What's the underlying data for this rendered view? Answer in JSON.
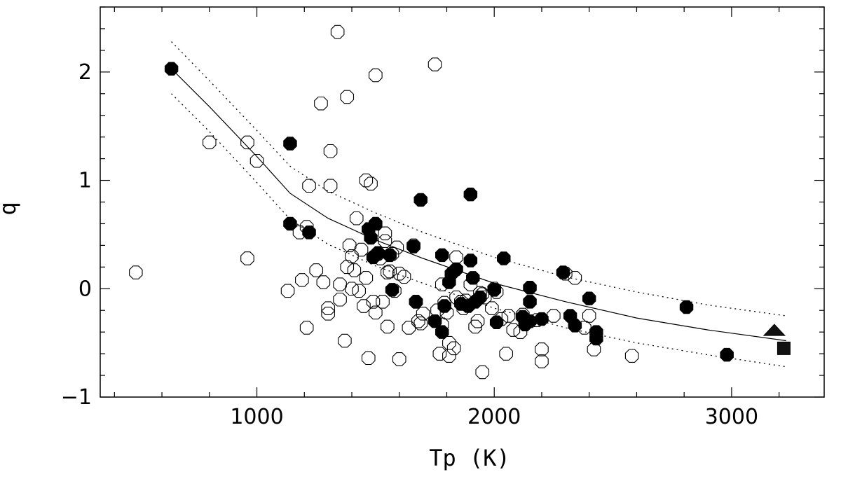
{
  "chart_data": {
    "type": "scatter",
    "title": "",
    "xlabel": "Tp (K)",
    "ylabel": "q",
    "xlim": [
      340,
      3390
    ],
    "ylim": [
      -1.0,
      2.6
    ],
    "x_ticks": [
      1000,
      2000,
      3000
    ],
    "x_tick_labels": [
      "1000",
      "2000",
      "3000"
    ],
    "y_ticks": [
      -1,
      0,
      1,
      2
    ],
    "y_tick_labels": [
      "−1",
      "0",
      "1",
      "2"
    ],
    "grid": false,
    "series": [
      {
        "marker": "open-octagon",
        "points": [
          [
            490,
            0.15
          ],
          [
            800,
            1.35
          ],
          [
            960,
            1.35
          ],
          [
            960,
            0.28
          ],
          [
            1000,
            1.18
          ],
          [
            1130,
            -0.02
          ],
          [
            1180,
            0.52
          ],
          [
            1190,
            0.08
          ],
          [
            1210,
            0.57
          ],
          [
            1210,
            -0.36
          ],
          [
            1220,
            0.95
          ],
          [
            1250,
            0.17
          ],
          [
            1270,
            1.71
          ],
          [
            1280,
            0.06
          ],
          [
            1300,
            -0.23
          ],
          [
            1300,
            -0.18
          ],
          [
            1310,
            0.95
          ],
          [
            1310,
            1.27
          ],
          [
            1340,
            2.37
          ],
          [
            1350,
            -0.1
          ],
          [
            1350,
            0.04
          ],
          [
            1370,
            -0.48
          ],
          [
            1380,
            1.77
          ],
          [
            1380,
            0.2
          ],
          [
            1390,
            0.4
          ],
          [
            1400,
            0.3
          ],
          [
            1400,
            0.0
          ],
          [
            1410,
            0.17
          ],
          [
            1420,
            0.65
          ],
          [
            1430,
            -0.02
          ],
          [
            1440,
            0.36
          ],
          [
            1450,
            -0.16
          ],
          [
            1460,
            0.1
          ],
          [
            1460,
            1.0
          ],
          [
            1470,
            -0.64
          ],
          [
            1480,
            0.97
          ],
          [
            1490,
            -0.12
          ],
          [
            1500,
            -0.22
          ],
          [
            1500,
            1.97
          ],
          [
            1510,
            0.32
          ],
          [
            1520,
            0.28
          ],
          [
            1530,
            -0.12
          ],
          [
            1540,
            0.51
          ],
          [
            1540,
            0.44
          ],
          [
            1550,
            0.15
          ],
          [
            1550,
            -0.35
          ],
          [
            1560,
            0.16
          ],
          [
            1570,
            0.32
          ],
          [
            1580,
            -0.02
          ],
          [
            1590,
            0.38
          ],
          [
            1600,
            0.14
          ],
          [
            1600,
            -0.65
          ],
          [
            1620,
            0.11
          ],
          [
            1640,
            -0.36
          ],
          [
            1660,
            0.4
          ],
          [
            1670,
            -0.12
          ],
          [
            1680,
            -0.3
          ],
          [
            1690,
            -0.32
          ],
          [
            1700,
            -0.23
          ],
          [
            1750,
            2.07
          ],
          [
            1760,
            -0.2
          ],
          [
            1770,
            -0.6
          ],
          [
            1780,
            -0.33
          ],
          [
            1780,
            0.04
          ],
          [
            1790,
            -0.13
          ],
          [
            1800,
            -0.22
          ],
          [
            1810,
            -0.5
          ],
          [
            1810,
            -0.62
          ],
          [
            1830,
            -0.55
          ],
          [
            1840,
            0.29
          ],
          [
            1840,
            -0.08
          ],
          [
            1860,
            -0.12
          ],
          [
            1870,
            -0.18
          ],
          [
            1880,
            -0.11
          ],
          [
            1900,
            0.04
          ],
          [
            1920,
            -0.35
          ],
          [
            1930,
            -0.3
          ],
          [
            1940,
            -0.04
          ],
          [
            1950,
            -0.05
          ],
          [
            1950,
            -0.77
          ],
          [
            1960,
            -0.08
          ],
          [
            1990,
            -0.18
          ],
          [
            2000,
            0.0
          ],
          [
            2010,
            -0.03
          ],
          [
            2030,
            -0.28
          ],
          [
            2050,
            -0.6
          ],
          [
            2060,
            -0.25
          ],
          [
            2080,
            -0.38
          ],
          [
            2110,
            -0.4
          ],
          [
            2120,
            -0.24
          ],
          [
            2180,
            -0.29
          ],
          [
            2200,
            -0.56
          ],
          [
            2200,
            -0.67
          ],
          [
            2250,
            -0.25
          ],
          [
            2300,
            0.14
          ],
          [
            2340,
            0.1
          ],
          [
            2380,
            -0.36
          ],
          [
            2400,
            -0.25
          ],
          [
            2420,
            -0.56
          ],
          [
            2580,
            -0.62
          ]
        ]
      },
      {
        "marker": "filled-octagon",
        "points": [
          [
            640,
            2.03
          ],
          [
            1140,
            1.34
          ],
          [
            1140,
            0.6
          ],
          [
            1220,
            0.52
          ],
          [
            1470,
            0.55
          ],
          [
            1480,
            0.47
          ],
          [
            1490,
            0.29
          ],
          [
            1500,
            0.6
          ],
          [
            1510,
            0.33
          ],
          [
            1560,
            0.31
          ],
          [
            1570,
            -0.01
          ],
          [
            1660,
            0.39
          ],
          [
            1670,
            -0.12
          ],
          [
            1690,
            0.82
          ],
          [
            1750,
            -0.3
          ],
          [
            1780,
            0.31
          ],
          [
            1780,
            -0.4
          ],
          [
            1790,
            -0.16
          ],
          [
            1810,
            0.06
          ],
          [
            1820,
            0.14
          ],
          [
            1840,
            0.18
          ],
          [
            1860,
            -0.14
          ],
          [
            1890,
            -0.16
          ],
          [
            1900,
            0.26
          ],
          [
            1900,
            0.87
          ],
          [
            1910,
            0.1
          ],
          [
            1920,
            -0.12
          ],
          [
            1940,
            -0.08
          ],
          [
            2000,
            -0.01
          ],
          [
            2010,
            -0.31
          ],
          [
            2040,
            0.28
          ],
          [
            2120,
            -0.26
          ],
          [
            2130,
            -0.33
          ],
          [
            2150,
            0.01
          ],
          [
            2150,
            -0.12
          ],
          [
            2150,
            -0.3
          ],
          [
            2200,
            -0.28
          ],
          [
            2290,
            0.15
          ],
          [
            2320,
            -0.25
          ],
          [
            2340,
            -0.34
          ],
          [
            2400,
            -0.09
          ],
          [
            2430,
            -0.4
          ],
          [
            2430,
            -0.46
          ],
          [
            2810,
            -0.17
          ],
          [
            2980,
            -0.61
          ]
        ]
      },
      {
        "marker": "filled-triangle",
        "points": [
          [
            3180,
            -0.38
          ]
        ]
      },
      {
        "marker": "filled-square",
        "points": [
          [
            3220,
            -0.55
          ]
        ]
      }
    ],
    "fit_line": {
      "style": "solid",
      "points": [
        [
          640,
          2.03
        ],
        [
          800,
          1.68
        ],
        [
          1000,
          1.22
        ],
        [
          1140,
          0.88
        ],
        [
          1300,
          0.65
        ],
        [
          1500,
          0.45
        ],
        [
          1700,
          0.28
        ],
        [
          2000,
          0.05
        ],
        [
          2300,
          -0.12
        ],
        [
          2600,
          -0.27
        ],
        [
          2900,
          -0.38
        ],
        [
          3230,
          -0.48
        ]
      ]
    },
    "fit_band_upper": {
      "style": "dotted",
      "points": [
        [
          640,
          2.28
        ],
        [
          800,
          1.92
        ],
        [
          1000,
          1.46
        ],
        [
          1140,
          1.13
        ],
        [
          1300,
          0.9
        ],
        [
          1500,
          0.7
        ],
        [
          1700,
          0.52
        ],
        [
          2000,
          0.29
        ],
        [
          2300,
          0.11
        ],
        [
          2600,
          -0.03
        ],
        [
          2900,
          -0.15
        ],
        [
          3230,
          -0.25
        ]
      ]
    },
    "fit_band_lower": {
      "style": "dotted",
      "points": [
        [
          640,
          1.8
        ],
        [
          800,
          1.45
        ],
        [
          1000,
          0.98
        ],
        [
          1140,
          0.64
        ],
        [
          1300,
          0.41
        ],
        [
          1500,
          0.21
        ],
        [
          1700,
          0.05
        ],
        [
          2000,
          -0.18
        ],
        [
          2300,
          -0.36
        ],
        [
          2600,
          -0.5
        ],
        [
          2900,
          -0.61
        ],
        [
          3230,
          -0.72
        ]
      ]
    }
  }
}
